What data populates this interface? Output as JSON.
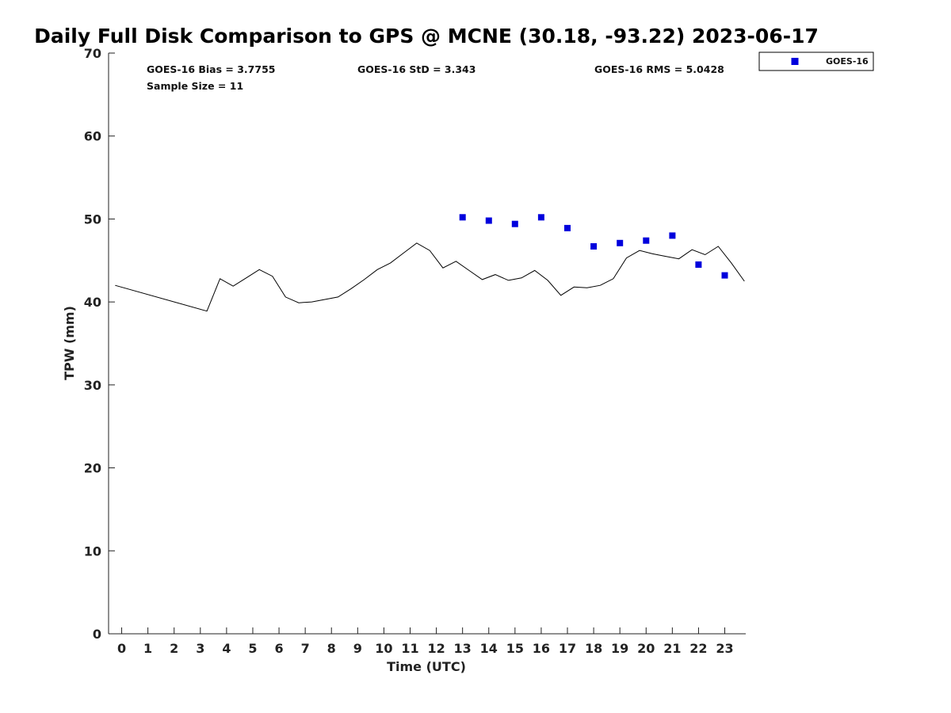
{
  "chart_data": {
    "type": "scatter",
    "title": "Daily Full Disk Comparison to GPS @ MCNE (30.18, -93.22) 2023-06-17",
    "xlabel": "Time (UTC)",
    "ylabel": "TPW (mm)",
    "xlim": [
      -0.5,
      23.8
    ],
    "ylim": [
      0,
      70
    ],
    "x_ticks": [
      0,
      1,
      2,
      3,
      4,
      5,
      6,
      7,
      8,
      9,
      10,
      11,
      12,
      13,
      14,
      15,
      16,
      17,
      18,
      19,
      20,
      21,
      22,
      23
    ],
    "y_ticks": [
      0,
      10,
      20,
      30,
      40,
      50,
      60,
      70
    ],
    "grid": false,
    "legend_position": "top-right",
    "series": [
      {
        "name": "GOES-16",
        "kind": "scatter",
        "marker": "square",
        "color": "#0000dd",
        "x": [
          13,
          14,
          15,
          16,
          17,
          18,
          19,
          20,
          21,
          22,
          23
        ],
        "y": [
          50.2,
          49.8,
          49.4,
          50.2,
          48.9,
          46.7,
          47.1,
          47.4,
          48.0,
          44.5,
          43.2
        ]
      },
      {
        "kind": "line",
        "color": "#000000",
        "x": [
          -0.25,
          3.25,
          3.75,
          4.25,
          4.75,
          5.25,
          5.75,
          6.25,
          6.75,
          7.25,
          7.75,
          8.25,
          8.75,
          9.25,
          9.75,
          10.25,
          10.75,
          11.25,
          11.75,
          12.25,
          12.75,
          13.25,
          13.75,
          14.25,
          14.75,
          15.25,
          15.75,
          16.25,
          16.75,
          17.25,
          17.75,
          18.25,
          18.75,
          19.25,
          19.75,
          20.25,
          20.75,
          21.25,
          21.75,
          22.25,
          22.75,
          23.25,
          23.75
        ],
        "y": [
          42.0,
          38.9,
          42.8,
          41.9,
          42.9,
          43.9,
          43.1,
          40.6,
          39.9,
          40.0,
          40.3,
          40.6,
          41.6,
          42.7,
          43.9,
          44.7,
          45.9,
          47.1,
          46.2,
          44.1,
          44.9,
          43.8,
          42.7,
          43.3,
          42.6,
          42.9,
          43.8,
          42.6,
          40.8,
          41.8,
          41.7,
          42.0,
          42.8,
          45.3,
          46.2,
          45.8,
          45.5,
          45.2,
          46.3,
          45.7,
          46.7,
          44.7,
          42.5
        ]
      }
    ],
    "annotations": {
      "bias": "GOES-16 Bias = 3.7755",
      "std": "GOES-16 StD = 3.343",
      "rms": "GOES-16 RMS = 5.0428",
      "sample_size": "Sample Size = 11"
    },
    "legend": {
      "label": "GOES-16"
    }
  }
}
